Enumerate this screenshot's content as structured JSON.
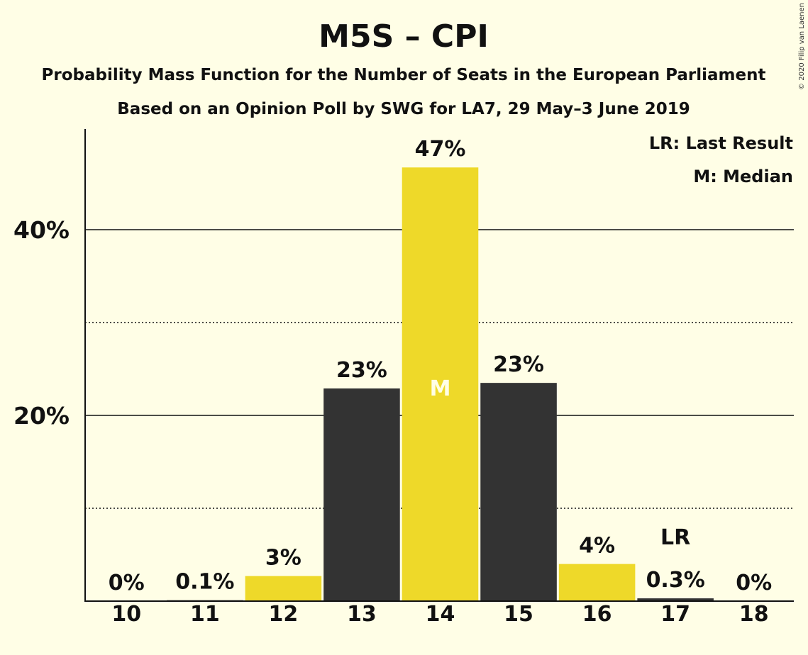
{
  "chart_data": {
    "type": "bar",
    "title": "M5S – CPI",
    "subtitle": "Probability Mass Function for the Number of Seats in the European Parliament",
    "subtitle2": "Based on an Opinion Poll by SWG for LA7, 29 May–3 June 2019",
    "copyright": "© 2020 Filip van Laenen",
    "legend": {
      "placement": "top-right",
      "lr": "LR: Last Result",
      "median": "M: Median"
    },
    "categories": [
      "10",
      "11",
      "12",
      "13",
      "14",
      "15",
      "16",
      "17",
      "18"
    ],
    "values": [
      0,
      0.1,
      2.7,
      22.9,
      46.7,
      23.5,
      4.0,
      0.3,
      0
    ],
    "data_labels": [
      "0%",
      "0.1%",
      "3%",
      "23%",
      "47%",
      "23%",
      "4%",
      "0.3%",
      "0%"
    ],
    "bar_colors": [
      "#EED929",
      "#333333",
      "#EED929",
      "#333333",
      "#EED929",
      "#333333",
      "#EED929",
      "#333333",
      "#EED929"
    ],
    "median_index": 4,
    "median_marker": "M",
    "last_result_index": 7,
    "last_result_marker": "LR",
    "yticks": [
      {
        "value": 20,
        "label": "20%"
      },
      {
        "value": 40,
        "label": "40%"
      }
    ],
    "minor_gridlines": [
      10,
      30
    ],
    "ylim": [
      0,
      50
    ],
    "grid": true
  }
}
